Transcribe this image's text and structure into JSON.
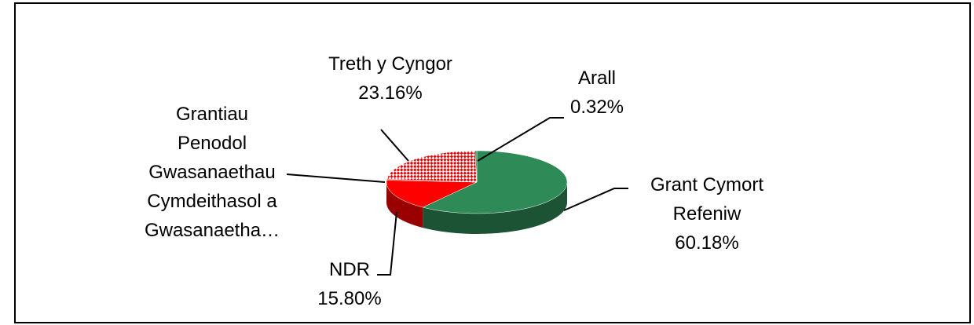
{
  "chart_data": {
    "type": "pie3d",
    "categories": [
      "Grant Cymort Refeniw",
      "NDR",
      "Grantiau Penodol Gwasanaethau Cymdeithasol a Gwasanaetha…",
      "Treth y Cyngor",
      "Arall"
    ],
    "values": [
      60.18,
      15.8,
      0.54,
      23.16,
      0.32
    ],
    "value_labels": [
      "60.18%",
      "15.80%",
      null,
      "23.16%",
      "0.32%"
    ],
    "colors": [
      "#2e8b57",
      "#ff0000",
      "#ff0000",
      "#e60000",
      "#2e8b57"
    ],
    "pattern": [
      false,
      false,
      false,
      true,
      false
    ]
  }
}
